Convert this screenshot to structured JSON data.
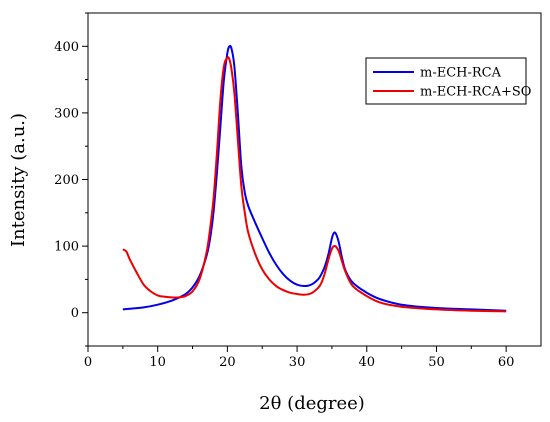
{
  "chart_data": {
    "type": "line",
    "title": "",
    "xlabel": "2θ (degree)",
    "ylabel": "Intensity (a.u.)",
    "xlim": [
      0,
      65
    ],
    "ylim": [
      -50,
      450
    ],
    "x_ticks": [
      0,
      10,
      20,
      30,
      40,
      50,
      60
    ],
    "y_ticks": [
      0,
      100,
      200,
      300,
      400
    ],
    "grid": false,
    "legend_position": "top-right",
    "series": [
      {
        "name": "m-ECH-RCA",
        "color": "#0000ee",
        "x": [
          5,
          8,
          10,
          12,
          14,
          15,
          16,
          17,
          17.5,
          18,
          18.5,
          19,
          19.5,
          20,
          20.3,
          20.6,
          21,
          21.5,
          22,
          22.5,
          23,
          24,
          25,
          26,
          27,
          28,
          29,
          30,
          31,
          32,
          33,
          33.5,
          34,
          34.5,
          35,
          35.3,
          35.6,
          36,
          36.5,
          37,
          38,
          40,
          42,
          45,
          50,
          55,
          60
        ],
        "y": [
          5,
          8,
          12,
          18,
          28,
          38,
          55,
          85,
          110,
          150,
          210,
          280,
          350,
          390,
          400,
          396,
          370,
          300,
          220,
          180,
          160,
          135,
          112,
          90,
          72,
          58,
          48,
          42,
          40,
          42,
          50,
          58,
          70,
          88,
          112,
          120,
          118,
          105,
          80,
          62,
          45,
          30,
          20,
          12,
          7,
          5,
          3
        ]
      },
      {
        "name": "m-ECH-RCA+SO",
        "color": "#ee0000",
        "x": [
          5,
          5.5,
          6,
          7,
          8,
          9,
          10,
          11,
          12,
          13,
          14,
          15,
          16,
          17,
          17.5,
          18,
          18.5,
          19,
          19.5,
          20,
          20.3,
          20.6,
          21,
          21.5,
          22,
          22.5,
          23,
          24,
          25,
          26,
          27,
          28,
          29,
          30,
          31,
          32,
          33,
          33.5,
          34,
          34.5,
          35,
          35.3,
          35.6,
          36,
          36.5,
          37,
          38,
          40,
          42,
          45,
          50,
          55,
          60
        ],
        "y": [
          95,
          92,
          80,
          60,
          42,
          32,
          26,
          24,
          23,
          23,
          25,
          32,
          50,
          90,
          125,
          170,
          240,
          320,
          370,
          383,
          380,
          365,
          330,
          260,
          190,
          150,
          120,
          88,
          65,
          50,
          40,
          34,
          30,
          28,
          27,
          29,
          37,
          45,
          60,
          80,
          96,
          100,
          99,
          92,
          75,
          60,
          40,
          25,
          15,
          9,
          5,
          3,
          2
        ]
      }
    ]
  }
}
